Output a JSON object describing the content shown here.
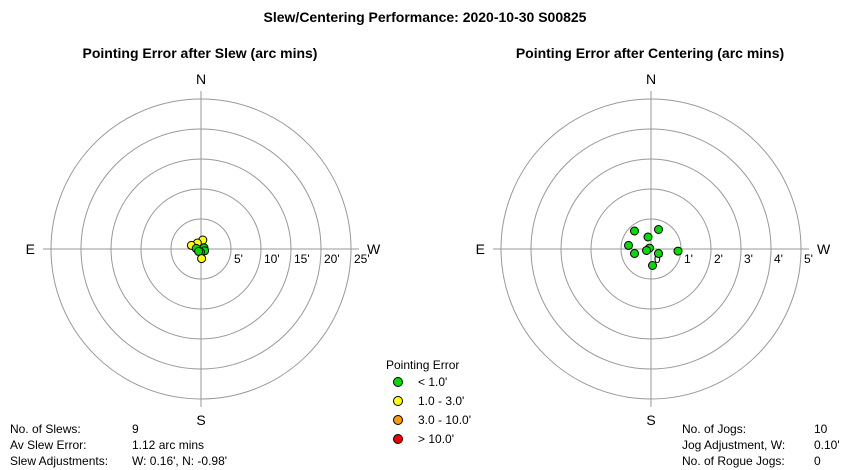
{
  "title": "Slew/Centering Performance: 2020-10-30 S00825",
  "chart_data": [
    {
      "type": "scatter",
      "polar": true,
      "title": "Pointing Error after Slew (arc mins)",
      "compass": {
        "north": "N",
        "south": "S",
        "east": "E",
        "west": "W"
      },
      "rmax": 25,
      "ring_labels": [
        "5'",
        "10'",
        "15'",
        "20'",
        "25'"
      ],
      "ring_values": [
        5,
        10,
        15,
        20,
        25
      ],
      "points": [
        {
          "x": 0.3,
          "y": 1.5,
          "cat": "yellow"
        },
        {
          "x": -0.6,
          "y": 1.0,
          "cat": "yellow"
        },
        {
          "x": -1.6,
          "y": 0.6,
          "cat": "yellow"
        },
        {
          "x": 0.5,
          "y": 0.2,
          "cat": "green"
        },
        {
          "x": -0.8,
          "y": 0.1,
          "cat": "green"
        },
        {
          "x": 0.6,
          "y": -0.3,
          "cat": "green"
        },
        {
          "x": -0.1,
          "y": -0.5,
          "cat": "green"
        },
        {
          "x": -0.4,
          "y": -0.4,
          "cat": "green"
        },
        {
          "x": 0.1,
          "y": -1.6,
          "cat": "yellow"
        }
      ]
    },
    {
      "type": "scatter",
      "polar": true,
      "title": "Pointing Error after Centering (arc mins)",
      "compass": {
        "north": "N",
        "south": "S",
        "east": "E",
        "west": "W"
      },
      "rmax": 5,
      "ring_labels": [
        "0'",
        "1'",
        "2'",
        "3'",
        "4'",
        "5'"
      ],
      "ring_values": [
        0,
        1,
        2,
        3,
        4,
        5
      ],
      "points": [
        {
          "x": -0.55,
          "y": 0.6,
          "cat": "green"
        },
        {
          "x": 0.25,
          "y": 0.65,
          "cat": "green"
        },
        {
          "x": -0.1,
          "y": 0.4,
          "cat": "green"
        },
        {
          "x": -0.75,
          "y": 0.12,
          "cat": "green"
        },
        {
          "x": -0.05,
          "y": 0.03,
          "cat": "green"
        },
        {
          "x": -0.15,
          "y": -0.05,
          "cat": "green"
        },
        {
          "x": 0.9,
          "y": -0.07,
          "cat": "green"
        },
        {
          "x": -0.55,
          "y": -0.15,
          "cat": "green"
        },
        {
          "x": 0.25,
          "y": -0.15,
          "cat": "green"
        },
        {
          "x": 0.05,
          "y": -0.55,
          "cat": "green"
        }
      ]
    }
  ],
  "legend": {
    "title": "Pointing Error",
    "items": [
      {
        "label": "< 1.0'",
        "color": "#00dd00"
      },
      {
        "label": "1.0 - 3.0'",
        "color": "#ffff00"
      },
      {
        "label": "3.0 - 10.0'",
        "color": "#ff9900"
      },
      {
        "label": "> 10.0'",
        "color": "#ee0000"
      }
    ]
  },
  "category_colors": {
    "green": "#00dd00",
    "yellow": "#ffff00",
    "orange": "#ff9900",
    "red": "#ee0000"
  },
  "slew_stats": [
    {
      "label": "No. of Slews:",
      "value": "9"
    },
    {
      "label": "Av Slew Error:",
      "value": "1.12 arc mins"
    },
    {
      "label": "Slew Adjustments:",
      "value": "W: 0.16', N: -0.98'"
    }
  ],
  "jog_stats": [
    {
      "label": "No. of Jogs:",
      "value": "10"
    },
    {
      "label": "Jog Adjustment, W:",
      "value": "0.10'"
    },
    {
      "label": "No. of Rogue Jogs:",
      "value": "0"
    }
  ]
}
